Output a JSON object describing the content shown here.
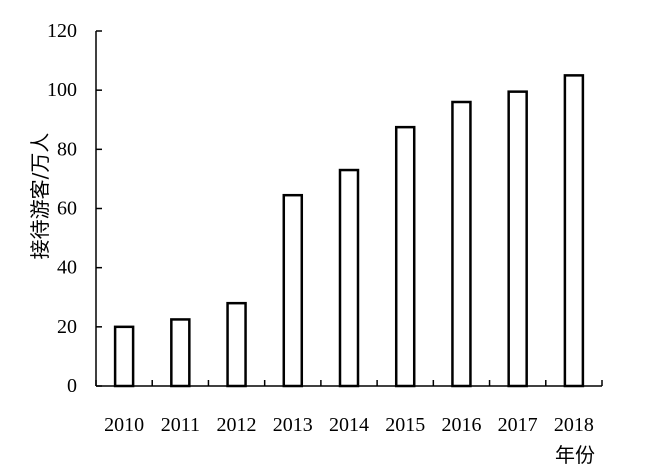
{
  "chart_data": {
    "type": "bar",
    "categories": [
      "2010",
      "2011",
      "2012",
      "2013",
      "2014",
      "2015",
      "2016",
      "2017",
      "2018"
    ],
    "values": [
      20,
      22.5,
      28,
      64.5,
      73,
      87.5,
      96,
      99.5,
      105
    ],
    "ylabel": "接待游客/万人",
    "xlabel": "年份",
    "ylim": [
      0,
      120
    ],
    "yticks": [
      0,
      20,
      40,
      60,
      80,
      100,
      120
    ],
    "grid": false,
    "legend": "none"
  }
}
